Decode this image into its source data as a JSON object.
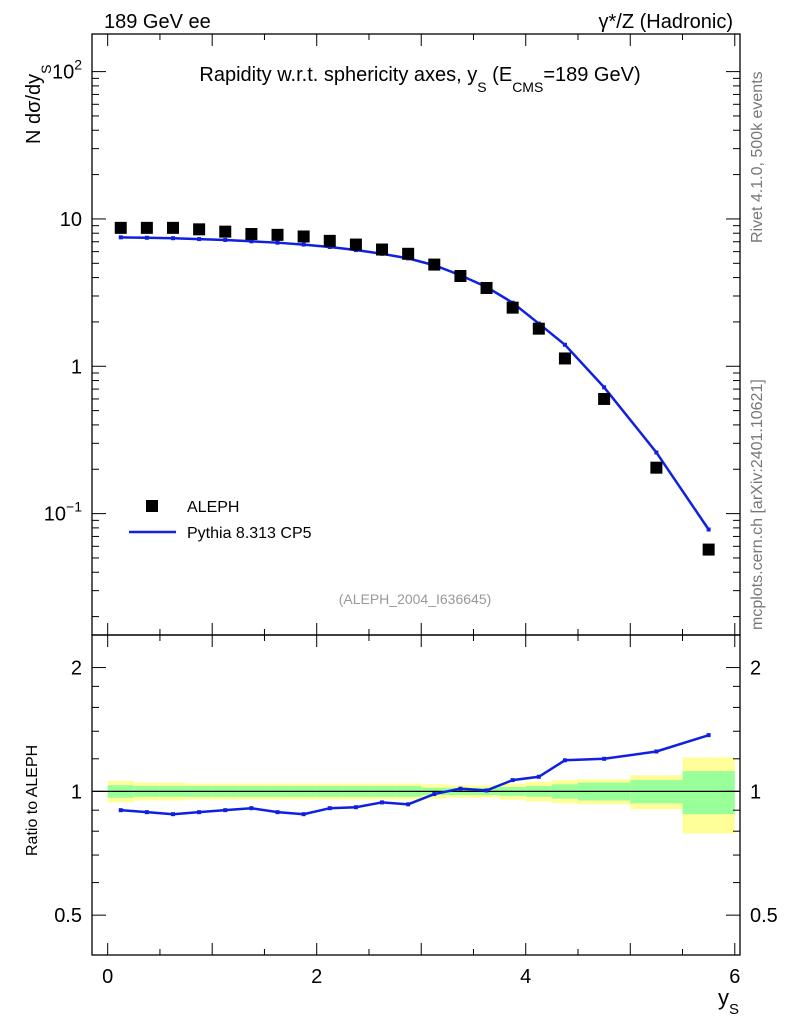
{
  "header": {
    "left": "189 GeV ee",
    "right": "γ*/Z (Hadronic)"
  },
  "side_labels": {
    "rivet": "Rivet 4.1.0,  500k events",
    "mcplots": "mcplots.cern.ch [arXiv:2401.10621]"
  },
  "colors": {
    "mc": "#1020e0",
    "data": "#000000",
    "band_inner": "#99ff99",
    "band_outer": "#ffff99",
    "watermark": "#999999"
  },
  "chart_data": [
    {
      "panel": "main",
      "type": "scatter+line",
      "title": "Rapidity w.r.t. sphericity axes, y",
      "title_sub": "S",
      "title_tail_open": " (E",
      "title_tail_sub": "CMS",
      "title_tail_close": "=189 GeV)",
      "ylabel_main": "N  dσ/dy",
      "ylabel_sub": "S",
      "yscale": "log",
      "ylim": [
        0.015,
        180
      ],
      "xlim": [
        -0.15,
        6.05
      ],
      "y_ticks": [
        {
          "value": 100,
          "base": "10",
          "exp": "2"
        },
        {
          "value": 10,
          "base": "10",
          "exp": ""
        },
        {
          "value": 1,
          "base": "1",
          "exp": ""
        },
        {
          "value": 0.1,
          "base": "10",
          "exp": "−1"
        }
      ],
      "watermark": "(ALEPH_2004_I636645)",
      "legend": {
        "position": "lower-left",
        "data_label": "ALEPH",
        "mc_label": "Pythia 8.313 CP5"
      },
      "series": [
        {
          "name": "ALEPH",
          "style": "markers",
          "x": [
            0.125,
            0.375,
            0.625,
            0.875,
            1.125,
            1.375,
            1.625,
            1.875,
            2.125,
            2.375,
            2.625,
            2.875,
            3.125,
            3.375,
            3.625,
            3.875,
            4.125,
            4.375,
            4.75,
            5.25,
            5.75
          ],
          "y": [
            8.7,
            8.7,
            8.7,
            8.5,
            8.2,
            7.9,
            7.8,
            7.6,
            7.1,
            6.7,
            6.2,
            5.8,
            4.9,
            4.1,
            3.4,
            2.5,
            1.8,
            1.13,
            0.6,
            0.205,
            0.057
          ]
        },
        {
          "name": "Pythia 8.313 CP5",
          "style": "line",
          "x": [
            0.125,
            0.375,
            0.625,
            0.875,
            1.125,
            1.375,
            1.625,
            1.875,
            2.125,
            2.375,
            2.625,
            2.875,
            3.125,
            3.375,
            3.625,
            3.875,
            4.125,
            4.375,
            4.75,
            5.25,
            5.75
          ],
          "y": [
            7.5,
            7.45,
            7.4,
            7.3,
            7.2,
            7.05,
            6.9,
            6.7,
            6.45,
            6.15,
            5.8,
            5.4,
            4.85,
            4.15,
            3.45,
            2.7,
            1.95,
            1.4,
            0.72,
            0.26,
            0.078
          ]
        }
      ]
    },
    {
      "panel": "ratio",
      "type": "line",
      "ylabel": "Ratio to ALEPH",
      "xlabel": "y",
      "xlabel_sub": "S",
      "ylim": [
        0.4,
        2.4
      ],
      "xlim": [
        -0.15,
        6.05
      ],
      "x_ticks": [
        {
          "value": 0,
          "label": "0"
        },
        {
          "value": 2,
          "label": "2"
        },
        {
          "value": 4,
          "label": "4"
        },
        {
          "value": 6,
          "label": "6"
        }
      ],
      "y_ticks": [
        {
          "value": 0.5,
          "label": "0.5"
        },
        {
          "value": 1,
          "label": "1"
        },
        {
          "value": 2,
          "label": "2"
        }
      ],
      "bin_edges": [
        0,
        0.25,
        0.5,
        0.75,
        1.0,
        1.25,
        1.5,
        1.75,
        2.0,
        2.25,
        2.5,
        2.75,
        3.0,
        3.25,
        3.5,
        3.75,
        4.0,
        4.25,
        4.5,
        5.0,
        5.5,
        6.0
      ],
      "band_inner": [
        0.035,
        0.03,
        0.03,
        0.03,
        0.03,
        0.03,
        0.03,
        0.03,
        0.03,
        0.03,
        0.03,
        0.03,
        0.02,
        0.02,
        0.02,
        0.025,
        0.03,
        0.04,
        0.05,
        0.065,
        0.12
      ],
      "band_outer": [
        0.06,
        0.05,
        0.05,
        0.045,
        0.045,
        0.045,
        0.045,
        0.045,
        0.045,
        0.045,
        0.045,
        0.045,
        0.04,
        0.035,
        0.035,
        0.045,
        0.055,
        0.065,
        0.07,
        0.095,
        0.21
      ],
      "series": [
        {
          "name": "Pythia 8.313 CP5 / ALEPH",
          "x": [
            0.125,
            0.375,
            0.625,
            0.875,
            1.125,
            1.375,
            1.625,
            1.875,
            2.125,
            2.375,
            2.625,
            2.875,
            3.125,
            3.375,
            3.625,
            3.875,
            4.125,
            4.375,
            4.75,
            5.25,
            5.75
          ],
          "y": [
            0.9,
            0.89,
            0.88,
            0.89,
            0.9,
            0.91,
            0.89,
            0.88,
            0.91,
            0.915,
            0.94,
            0.93,
            0.985,
            1.015,
            1.005,
            1.065,
            1.085,
            1.19,
            1.2,
            1.25,
            1.37
          ]
        }
      ]
    }
  ]
}
